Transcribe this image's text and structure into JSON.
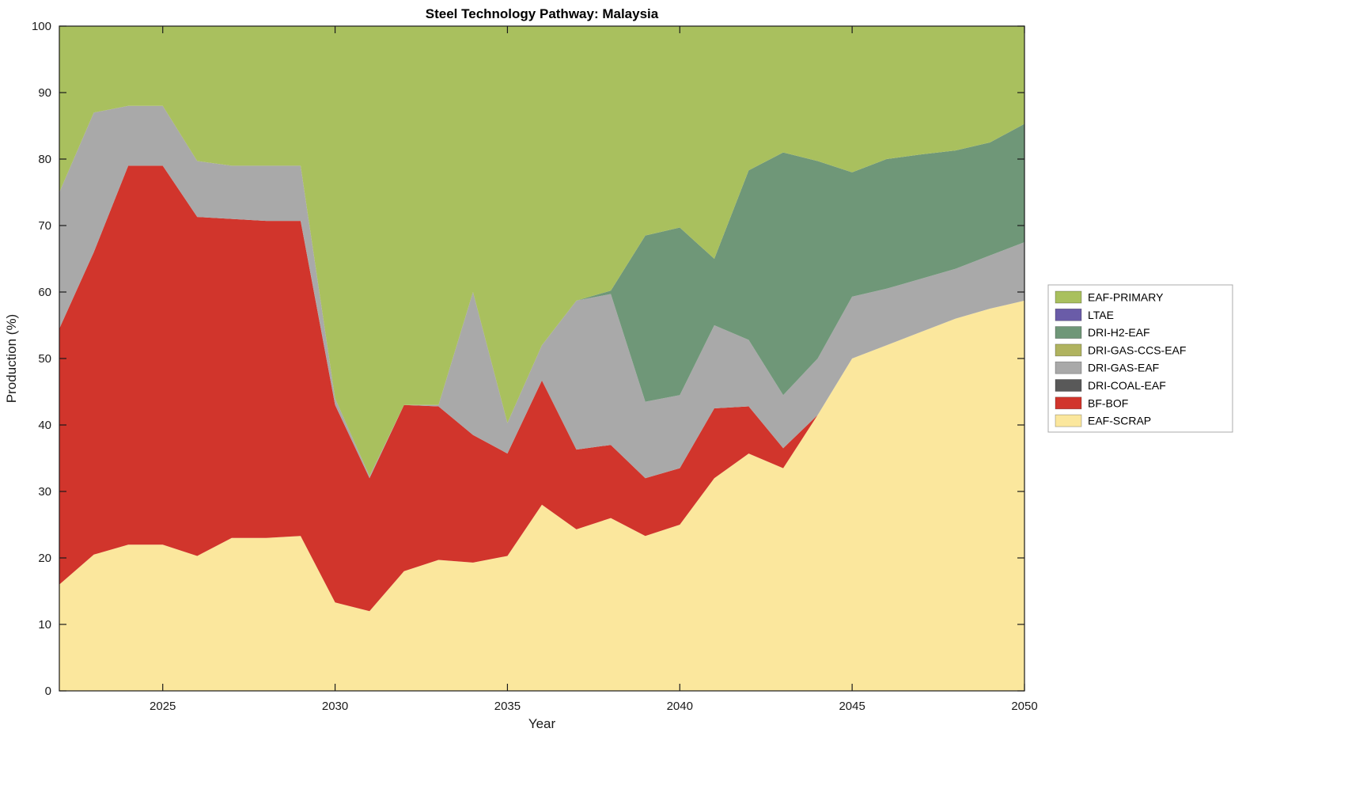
{
  "chart_data": {
    "type": "area",
    "stacked": true,
    "title": "Steel Technology Pathway: Malaysia",
    "xlabel": "Year",
    "ylabel": "Production (%)",
    "xlim": [
      2022,
      2050
    ],
    "ylim": [
      0,
      100
    ],
    "xticks": [
      2025,
      2030,
      2035,
      2040,
      2045,
      2050
    ],
    "yticks": [
      0,
      10,
      20,
      30,
      40,
      50,
      60,
      70,
      80,
      90,
      100
    ],
    "grid": false,
    "years": [
      2022,
      2023,
      2024,
      2025,
      2026,
      2027,
      2028,
      2029,
      2030,
      2031,
      2032,
      2033,
      2034,
      2035,
      2036,
      2037,
      2038,
      2039,
      2040,
      2041,
      2042,
      2043,
      2044,
      2045,
      2046,
      2047,
      2048,
      2049,
      2050
    ],
    "series": [
      {
        "name": "EAF-SCRAP",
        "color": "#fbe79d",
        "values": [
          16,
          20.5,
          22,
          22,
          20.3,
          23,
          23,
          23.3,
          13.3,
          12,
          18,
          19.7,
          19.3,
          20.3,
          28,
          24.3,
          26,
          23.3,
          25,
          32,
          35.7,
          33.5,
          41.5,
          50,
          52,
          54,
          56,
          57.5,
          58.7
        ]
      },
      {
        "name": "BF-BOF",
        "color": "#d1352c",
        "values": [
          38.5,
          45.5,
          57,
          57,
          51,
          48,
          47.7,
          47.4,
          29.7,
          20,
          25,
          23.1,
          19.2,
          15.4,
          18.7,
          12,
          11,
          8.7,
          8.5,
          10.5,
          7.1,
          3,
          0,
          0,
          0,
          0,
          0,
          0,
          0
        ]
      },
      {
        "name": "DRI-COAL-EAF",
        "color": "#595959",
        "values": [
          0,
          0,
          0,
          0,
          0,
          0,
          0,
          0,
          0,
          0,
          0,
          0,
          0,
          0,
          0,
          0,
          0,
          0,
          0,
          0,
          0,
          0,
          0,
          0,
          0,
          0,
          0,
          0,
          0
        ]
      },
      {
        "name": "DRI-GAS-EAF",
        "color": "#a9a9a9",
        "values": [
          20.5,
          21,
          9,
          9,
          8.4,
          8,
          8.3,
          8.3,
          1,
          0.3,
          0,
          0.2,
          21.5,
          4.6,
          5.3,
          22.4,
          22.7,
          11.5,
          11,
          12.5,
          10,
          8,
          8.5,
          9.3,
          8.5,
          8,
          7.5,
          8,
          8.8
        ]
      },
      {
        "name": "DRI-GAS-CCS-EAF",
        "color": "#b0b35f",
        "values": [
          0,
          0,
          0,
          0,
          0,
          0,
          0,
          0,
          0,
          0,
          0,
          0,
          0,
          0,
          0,
          0,
          0,
          0,
          0,
          0,
          0,
          0,
          0,
          0,
          0,
          0,
          0,
          0,
          0
        ]
      },
      {
        "name": "DRI-H2-EAF",
        "color": "#6f9778",
        "values": [
          0,
          0,
          0,
          0,
          0,
          0,
          0,
          0,
          0,
          0,
          0,
          0,
          0,
          0,
          0,
          0,
          0.5,
          25,
          25.2,
          10,
          25.5,
          36.5,
          29.7,
          18.7,
          19.5,
          18.7,
          17.8,
          17,
          17.8
        ]
      },
      {
        "name": "LTAE",
        "color": "#6a5ca8",
        "values": [
          0,
          0,
          0,
          0,
          0,
          0,
          0,
          0,
          0,
          0,
          0,
          0,
          0,
          0,
          0,
          0,
          0,
          0,
          0,
          0,
          0,
          0,
          0,
          0,
          0,
          0,
          0,
          0,
          0
        ]
      },
      {
        "name": "EAF-PRIMARY",
        "color": "#a9c05e",
        "values": [
          25,
          13,
          12,
          12,
          20.3,
          21,
          21,
          21,
          56,
          67.7,
          57,
          57,
          40,
          59.7,
          48,
          41.3,
          39.8,
          31.5,
          30.3,
          35,
          21.7,
          19,
          20.3,
          22,
          20,
          19.3,
          18.7,
          17.5,
          14.7
        ]
      }
    ],
    "legend": {
      "position": "right-outside",
      "labels": [
        "EAF-PRIMARY",
        "LTAE",
        "DRI-H2-EAF",
        "DRI-GAS-CCS-EAF",
        "DRI-GAS-EAF",
        "DRI-COAL-EAF",
        "BF-BOF",
        "EAF-SCRAP"
      ]
    }
  }
}
